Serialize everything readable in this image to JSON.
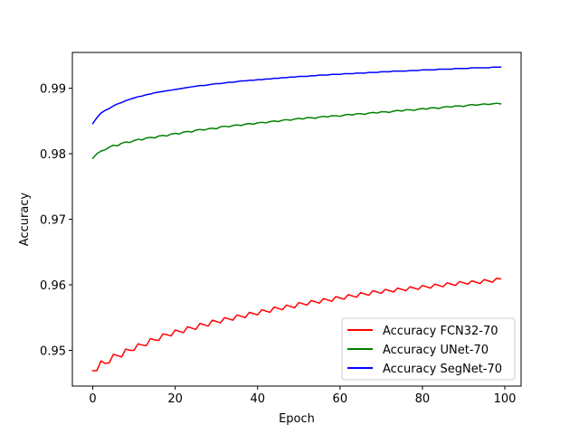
{
  "chart_data": {
    "type": "line",
    "title": "",
    "xlabel": "Epoch",
    "ylabel": "Accuracy",
    "xlim": [
      -4.95,
      103.95
    ],
    "ylim": [
      0.94455,
      0.99545
    ],
    "x_ticks": [
      0,
      20,
      40,
      60,
      80,
      100
    ],
    "y_ticks": [
      0.95,
      0.96,
      0.97,
      0.98,
      0.99
    ],
    "x_tick_labels": [
      "0",
      "20",
      "40",
      "60",
      "80",
      "100"
    ],
    "y_tick_labels": [
      "0.95",
      "0.96",
      "0.97",
      "0.98",
      "0.99"
    ],
    "grid": false,
    "legend_position": "lower-right",
    "x": {
      "start": 0,
      "end": 99,
      "step": 1
    },
    "series": [
      {
        "name": "Accuracy FCN32-70",
        "color": "#ff0000",
        "values": [
          0.9469,
          0.9469,
          0.9484,
          0.948,
          0.9481,
          0.9494,
          0.9492,
          0.949,
          0.9502,
          0.95,
          0.95,
          0.951,
          0.9508,
          0.9507,
          0.9518,
          0.9516,
          0.9515,
          0.9525,
          0.9524,
          0.9522,
          0.9531,
          0.9529,
          0.9527,
          0.9536,
          0.9534,
          0.9532,
          0.9541,
          0.9539,
          0.9537,
          0.9546,
          0.9544,
          0.9542,
          0.955,
          0.9548,
          0.9546,
          0.9554,
          0.9552,
          0.955,
          0.9558,
          0.9556,
          0.9554,
          0.9562,
          0.956,
          0.9558,
          0.9566,
          0.9564,
          0.9562,
          0.9569,
          0.9567,
          0.9565,
          0.9573,
          0.9571,
          0.9569,
          0.9576,
          0.9574,
          0.9572,
          0.9579,
          0.9577,
          0.9575,
          0.9582,
          0.958,
          0.9578,
          0.9585,
          0.9583,
          0.9581,
          0.9588,
          0.9586,
          0.9584,
          0.9591,
          0.9589,
          0.9587,
          0.9593,
          0.9591,
          0.9589,
          0.9595,
          0.9593,
          0.9591,
          0.9597,
          0.9595,
          0.9593,
          0.9599,
          0.9597,
          0.9595,
          0.9601,
          0.9599,
          0.9597,
          0.9603,
          0.9601,
          0.9599,
          0.9605,
          0.9603,
          0.9601,
          0.9606,
          0.9604,
          0.9602,
          0.9608,
          0.9606,
          0.9604,
          0.961,
          0.9609
        ]
      },
      {
        "name": "Accuracy UNet-70",
        "color": "#008000",
        "values": [
          0.9793,
          0.98,
          0.9804,
          0.9806,
          0.981,
          0.9813,
          0.9812,
          0.9816,
          0.9818,
          0.9817,
          0.982,
          0.9822,
          0.9821,
          0.9824,
          0.9825,
          0.9824,
          0.9827,
          0.9828,
          0.9827,
          0.983,
          0.9831,
          0.983,
          0.9833,
          0.9834,
          0.9833,
          0.9836,
          0.9837,
          0.9836,
          0.9838,
          0.9839,
          0.9838,
          0.9841,
          0.9842,
          0.9841,
          0.9843,
          0.9844,
          0.9843,
          0.9845,
          0.9846,
          0.9845,
          0.9847,
          0.9848,
          0.9847,
          0.9849,
          0.985,
          0.9849,
          0.9851,
          0.9852,
          0.9851,
          0.9853,
          0.9854,
          0.9853,
          0.9855,
          0.9855,
          0.9854,
          0.9856,
          0.9857,
          0.9856,
          0.9858,
          0.9858,
          0.9857,
          0.9859,
          0.986,
          0.9859,
          0.9861,
          0.9861,
          0.986,
          0.9862,
          0.9863,
          0.9862,
          0.9864,
          0.9864,
          0.9863,
          0.9865,
          0.9866,
          0.9865,
          0.9867,
          0.9867,
          0.9866,
          0.9868,
          0.9869,
          0.9868,
          0.987,
          0.987,
          0.9869,
          0.9871,
          0.9872,
          0.9871,
          0.9873,
          0.9873,
          0.9872,
          0.9874,
          0.9875,
          0.9874,
          0.9875,
          0.9876,
          0.9875,
          0.9876,
          0.9877,
          0.9876
        ]
      },
      {
        "name": "Accuracy SegNet-70",
        "color": "#0000ff",
        "values": [
          0.9846,
          0.9855,
          0.9862,
          0.9866,
          0.9869,
          0.9873,
          0.9876,
          0.9878,
          0.9881,
          0.9883,
          0.9885,
          0.9887,
          0.9888,
          0.989,
          0.9891,
          0.9893,
          0.9894,
          0.9895,
          0.9896,
          0.9897,
          0.9898,
          0.9899,
          0.99,
          0.9901,
          0.9902,
          0.9903,
          0.9904,
          0.9904,
          0.9905,
          0.9906,
          0.9907,
          0.9907,
          0.9908,
          0.9909,
          0.9909,
          0.991,
          0.9911,
          0.9911,
          0.9912,
          0.9912,
          0.9913,
          0.9913,
          0.9914,
          0.9914,
          0.9915,
          0.9915,
          0.9916,
          0.9916,
          0.9917,
          0.9917,
          0.9918,
          0.9918,
          0.9918,
          0.9919,
          0.9919,
          0.992,
          0.992,
          0.992,
          0.9921,
          0.9921,
          0.9921,
          0.9922,
          0.9922,
          0.9922,
          0.9923,
          0.9923,
          0.9923,
          0.9924,
          0.9924,
          0.9924,
          0.9925,
          0.9925,
          0.9925,
          0.9926,
          0.9926,
          0.9926,
          0.9926,
          0.9927,
          0.9927,
          0.9927,
          0.9928,
          0.9928,
          0.9928,
          0.9928,
          0.9929,
          0.9929,
          0.9929,
          0.9929,
          0.993,
          0.993,
          0.993,
          0.993,
          0.9931,
          0.9931,
          0.9931,
          0.9931,
          0.9931,
          0.9932,
          0.9932,
          0.9932
        ]
      }
    ]
  }
}
